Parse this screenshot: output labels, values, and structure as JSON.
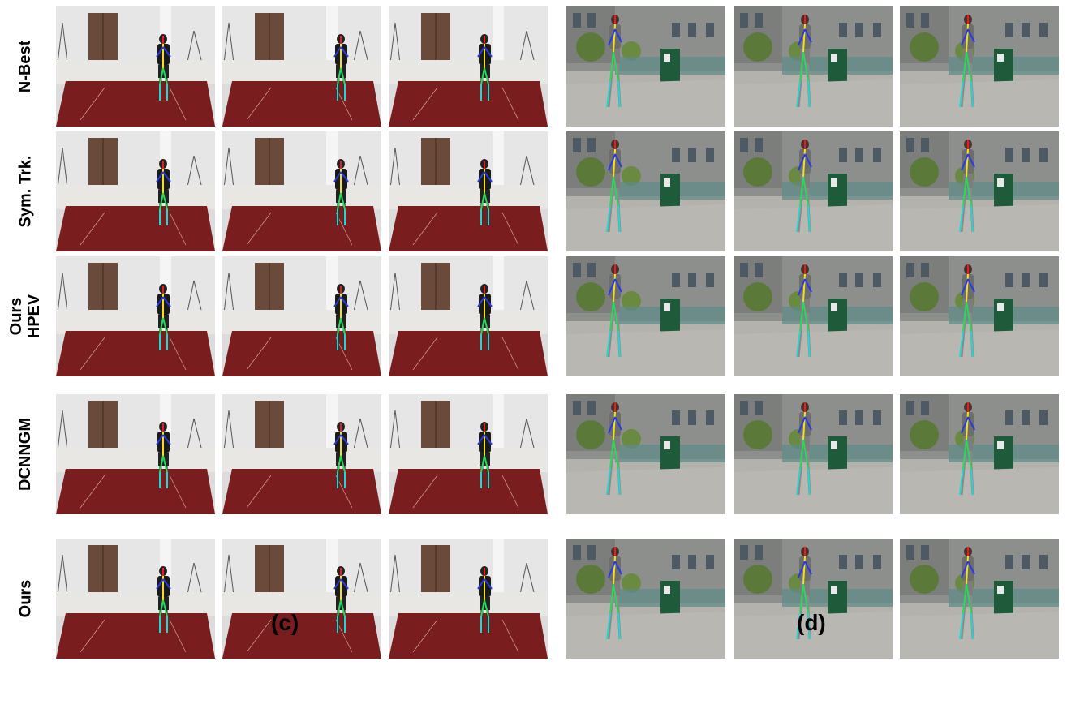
{
  "rows": [
    {
      "label_lines": [
        "N-Best"
      ]
    },
    {
      "label_lines": [
        "Sym. Trk."
      ]
    },
    {
      "label_lines": [
        "Ours",
        "HPEV"
      ]
    },
    {
      "label_lines": [
        "DCNNGM"
      ]
    },
    {
      "label_lines": [
        "Ours"
      ]
    }
  ],
  "panels": {
    "c": {
      "caption": "(c)",
      "scene": "indoor-studio-red-carpet-runner"
    },
    "d": {
      "caption": "(d)",
      "scene": "outdoor-sidewalk-walking-person"
    }
  },
  "colors": {
    "skeleton_torso": "#f2e21a",
    "skeleton_left_limb": "#2ad85a",
    "skeleton_right_limb": "#26d4d0",
    "skeleton_arm": "#2a3ae0",
    "skeleton_head": "#e02020",
    "carpet": "#7a1d1f",
    "wall": "#d9d9d9",
    "door": "#6a4a3a",
    "building": "#8d8f8c",
    "sidewalk": "#b9b7b2",
    "trash_bin": "#1f5a3a"
  }
}
